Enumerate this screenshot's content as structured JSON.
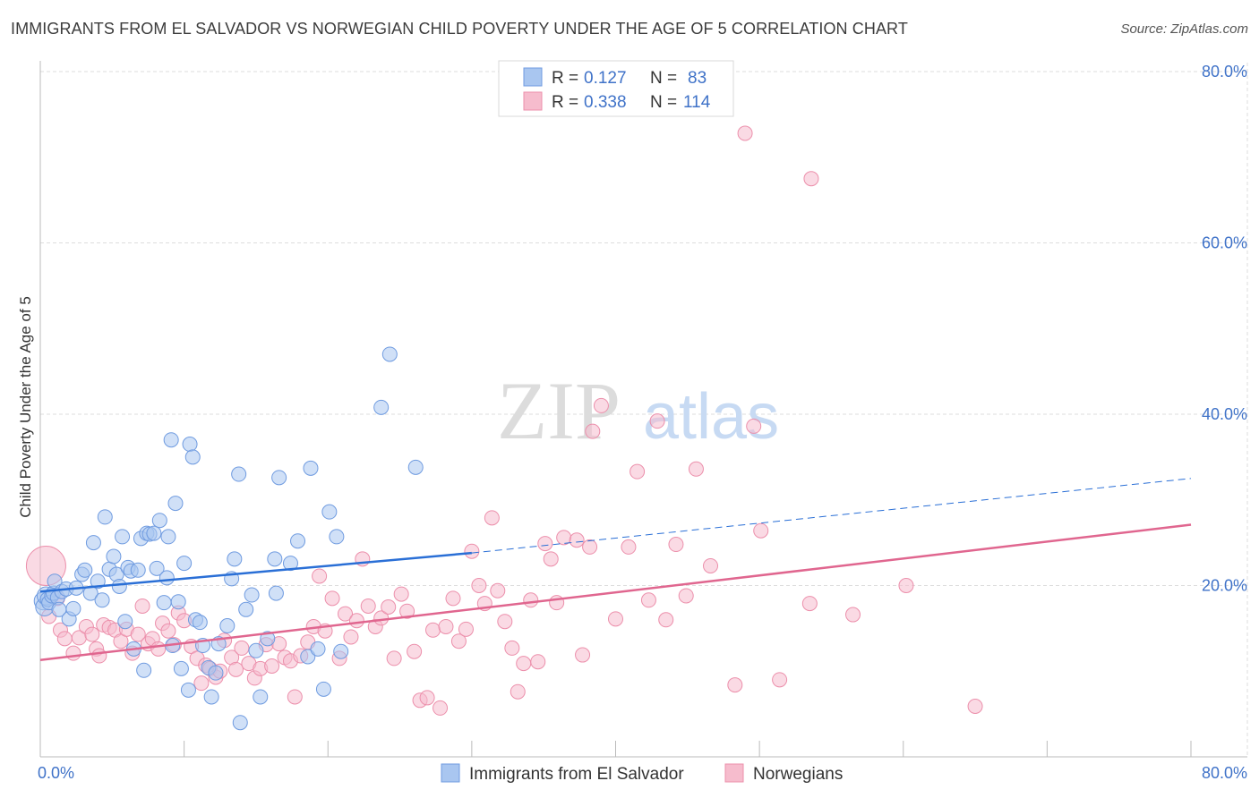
{
  "title": "IMMIGRANTS FROM EL SALVADOR VS NORWEGIAN CHILD POVERTY UNDER THE AGE OF 5 CORRELATION CHART",
  "source": "Source: ZipAtlas.com",
  "watermark": {
    "zip": "ZIP",
    "atlas": "atlas"
  },
  "legend_top": [
    {
      "r_label": "R =",
      "r_value": "0.127",
      "n_label": "N =",
      "n_value": "83"
    },
    {
      "r_label": "R =",
      "r_value": "0.338",
      "n_label": "N =",
      "n_value": "114"
    }
  ],
  "colors": {
    "blue_fill": "#a9c6f0",
    "blue_stroke": "#6f9be0",
    "blue_line": "#2a6fd6",
    "pink_fill": "#f6bccd",
    "pink_stroke": "#ec8fab",
    "pink_line": "#e0668f",
    "tick_text": "#3f72c8",
    "grid": "#dddddd"
  },
  "chart_data": {
    "type": "scatter",
    "title": "IMMIGRANTS FROM EL SALVADOR VS NORWEGIAN CHILD POVERTY UNDER THE AGE OF 5 CORRELATION CHART",
    "xlabel": "",
    "ylabel": "Child Poverty Under the Age of 5",
    "xlim": [
      0,
      80
    ],
    "ylim": [
      0,
      80
    ],
    "x_tick_labels": [
      "0.0%",
      "80.0%"
    ],
    "y_ticks": [
      20,
      40,
      60,
      80
    ],
    "y_tick_labels": [
      "20.0%",
      "40.0%",
      "60.0%",
      "80.0%"
    ],
    "grid": true,
    "legend_position": "top-center",
    "series": [
      {
        "name": "Immigrants from El Salvador",
        "color": "#a9c6f0",
        "trend": {
          "x": [
            0,
            30
          ],
          "y": [
            19.3,
            23.8
          ],
          "dashed_to": [
            80,
            32.5
          ]
        },
        "points": [
          [
            0.2,
            18.2
          ],
          [
            0.3,
            17.5
          ],
          [
            0.4,
            18.8
          ],
          [
            0.5,
            18.4
          ],
          [
            0.6,
            18.0
          ],
          [
            0.8,
            18.8
          ],
          [
            0.9,
            19.1
          ],
          [
            1.0,
            20.5
          ],
          [
            1.2,
            18.6
          ],
          [
            1.3,
            17.2
          ],
          [
            1.5,
            19.3
          ],
          [
            1.8,
            19.6
          ],
          [
            2.0,
            16.1
          ],
          [
            2.3,
            17.3
          ],
          [
            2.5,
            19.7
          ],
          [
            2.9,
            21.3
          ],
          [
            3.1,
            21.8
          ],
          [
            3.5,
            19.1
          ],
          [
            3.7,
            25.0
          ],
          [
            4.0,
            20.5
          ],
          [
            4.3,
            18.3
          ],
          [
            4.5,
            28.0
          ],
          [
            4.8,
            21.9
          ],
          [
            5.1,
            23.4
          ],
          [
            5.3,
            21.3
          ],
          [
            5.5,
            19.9
          ],
          [
            5.7,
            25.7
          ],
          [
            5.9,
            15.8
          ],
          [
            6.1,
            22.1
          ],
          [
            6.3,
            21.7
          ],
          [
            6.5,
            12.6
          ],
          [
            6.8,
            21.8
          ],
          [
            7.0,
            25.5
          ],
          [
            7.2,
            10.1
          ],
          [
            7.4,
            26.1
          ],
          [
            7.6,
            26.0
          ],
          [
            7.9,
            26.1
          ],
          [
            8.1,
            22.0
          ],
          [
            8.3,
            27.6
          ],
          [
            8.6,
            18.0
          ],
          [
            8.8,
            20.9
          ],
          [
            8.9,
            25.7
          ],
          [
            9.1,
            37.0
          ],
          [
            9.2,
            13.0
          ],
          [
            9.4,
            29.6
          ],
          [
            9.6,
            18.1
          ],
          [
            9.8,
            10.3
          ],
          [
            10.0,
            22.6
          ],
          [
            10.3,
            7.8
          ],
          [
            10.4,
            36.5
          ],
          [
            10.6,
            35.0
          ],
          [
            10.8,
            16.0
          ],
          [
            11.1,
            15.7
          ],
          [
            11.3,
            13.0
          ],
          [
            11.7,
            10.4
          ],
          [
            11.9,
            7.0
          ],
          [
            12.2,
            9.8
          ],
          [
            12.4,
            13.2
          ],
          [
            13.0,
            15.3
          ],
          [
            13.3,
            20.8
          ],
          [
            13.5,
            23.1
          ],
          [
            13.8,
            33.0
          ],
          [
            13.9,
            4.0
          ],
          [
            14.3,
            17.2
          ],
          [
            14.7,
            18.9
          ],
          [
            15.0,
            12.4
          ],
          [
            15.3,
            7.0
          ],
          [
            15.8,
            13.8
          ],
          [
            16.3,
            23.1
          ],
          [
            16.4,
            19.1
          ],
          [
            16.6,
            32.6
          ],
          [
            17.4,
            22.6
          ],
          [
            17.9,
            25.2
          ],
          [
            18.6,
            11.7
          ],
          [
            18.8,
            33.7
          ],
          [
            19.3,
            12.6
          ],
          [
            19.7,
            7.9
          ],
          [
            20.1,
            28.6
          ],
          [
            20.6,
            25.7
          ],
          [
            20.9,
            12.3
          ],
          [
            23.7,
            40.8
          ],
          [
            24.3,
            47.0
          ],
          [
            26.1,
            33.8
          ]
        ]
      },
      {
        "name": "Norwegians",
        "color": "#f6bccd",
        "trend": {
          "x": [
            0,
            80
          ],
          "y": [
            11.3,
            27.1
          ]
        },
        "points": [
          [
            0.4,
            22.3
          ],
          [
            0.6,
            16.4
          ],
          [
            1.2,
            18.5
          ],
          [
            1.4,
            14.8
          ],
          [
            1.7,
            13.8
          ],
          [
            2.3,
            12.1
          ],
          [
            2.7,
            13.9
          ],
          [
            3.2,
            15.2
          ],
          [
            3.6,
            14.3
          ],
          [
            3.9,
            12.6
          ],
          [
            4.1,
            11.8
          ],
          [
            4.4,
            15.4
          ],
          [
            4.8,
            15.1
          ],
          [
            5.2,
            14.8
          ],
          [
            5.6,
            13.5
          ],
          [
            6.0,
            14.9
          ],
          [
            6.4,
            12.1
          ],
          [
            6.8,
            14.3
          ],
          [
            7.1,
            17.6
          ],
          [
            7.5,
            13.2
          ],
          [
            7.8,
            13.8
          ],
          [
            8.2,
            12.6
          ],
          [
            8.5,
            15.6
          ],
          [
            8.9,
            14.7
          ],
          [
            9.3,
            13.1
          ],
          [
            9.6,
            16.8
          ],
          [
            10.0,
            15.9
          ],
          [
            10.5,
            12.9
          ],
          [
            10.9,
            11.5
          ],
          [
            11.2,
            8.6
          ],
          [
            11.5,
            10.7
          ],
          [
            11.8,
            10.3
          ],
          [
            12.2,
            9.3
          ],
          [
            12.5,
            10.0
          ],
          [
            12.8,
            13.6
          ],
          [
            13.3,
            11.6
          ],
          [
            13.6,
            10.2
          ],
          [
            14.0,
            12.7
          ],
          [
            14.5,
            10.9
          ],
          [
            14.9,
            9.2
          ],
          [
            15.3,
            10.3
          ],
          [
            15.7,
            13.1
          ],
          [
            16.1,
            10.6
          ],
          [
            16.6,
            13.2
          ],
          [
            17.0,
            11.6
          ],
          [
            17.4,
            11.2
          ],
          [
            17.7,
            7.0
          ],
          [
            18.1,
            11.8
          ],
          [
            18.6,
            13.4
          ],
          [
            19.0,
            15.2
          ],
          [
            19.4,
            21.1
          ],
          [
            19.8,
            14.7
          ],
          [
            20.3,
            18.5
          ],
          [
            20.8,
            11.5
          ],
          [
            21.2,
            16.7
          ],
          [
            21.6,
            14.0
          ],
          [
            22.0,
            15.9
          ],
          [
            22.4,
            23.1
          ],
          [
            22.8,
            17.6
          ],
          [
            23.3,
            15.2
          ],
          [
            23.7,
            16.2
          ],
          [
            24.2,
            17.5
          ],
          [
            24.6,
            11.5
          ],
          [
            25.1,
            19.0
          ],
          [
            25.5,
            17.0
          ],
          [
            26.0,
            12.3
          ],
          [
            26.4,
            6.6
          ],
          [
            26.9,
            6.9
          ],
          [
            27.3,
            14.8
          ],
          [
            27.8,
            5.7
          ],
          [
            28.2,
            15.2
          ],
          [
            28.7,
            18.5
          ],
          [
            29.1,
            13.5
          ],
          [
            29.6,
            14.9
          ],
          [
            30.0,
            24.0
          ],
          [
            30.5,
            20.0
          ],
          [
            30.9,
            17.9
          ],
          [
            31.4,
            27.9
          ],
          [
            31.8,
            19.4
          ],
          [
            32.3,
            15.8
          ],
          [
            32.8,
            12.7
          ],
          [
            33.2,
            7.6
          ],
          [
            33.6,
            10.9
          ],
          [
            34.1,
            18.3
          ],
          [
            34.6,
            11.1
          ],
          [
            35.1,
            24.9
          ],
          [
            35.5,
            23.1
          ],
          [
            35.9,
            18.0
          ],
          [
            36.4,
            25.6
          ],
          [
            37.3,
            25.3
          ],
          [
            37.7,
            11.9
          ],
          [
            38.2,
            24.5
          ],
          [
            39.0,
            41.0
          ],
          [
            38.4,
            38.0
          ],
          [
            40.0,
            16.1
          ],
          [
            40.9,
            24.5
          ],
          [
            41.5,
            33.3
          ],
          [
            42.9,
            39.2
          ],
          [
            43.5,
            16.0
          ],
          [
            44.2,
            24.8
          ],
          [
            44.9,
            18.8
          ],
          [
            45.6,
            33.6
          ],
          [
            46.6,
            22.3
          ],
          [
            48.3,
            8.4
          ],
          [
            49.6,
            38.6
          ],
          [
            50.1,
            26.4
          ],
          [
            51.4,
            9.0
          ],
          [
            53.5,
            17.9
          ],
          [
            56.5,
            16.6
          ],
          [
            60.2,
            20.0
          ],
          [
            65.0,
            5.9
          ],
          [
            53.6,
            67.5
          ],
          [
            49.0,
            72.8
          ],
          [
            42.3,
            18.3
          ]
        ]
      }
    ]
  },
  "bottom_legend": [
    "Immigrants from El Salvador",
    "Norwegians"
  ]
}
